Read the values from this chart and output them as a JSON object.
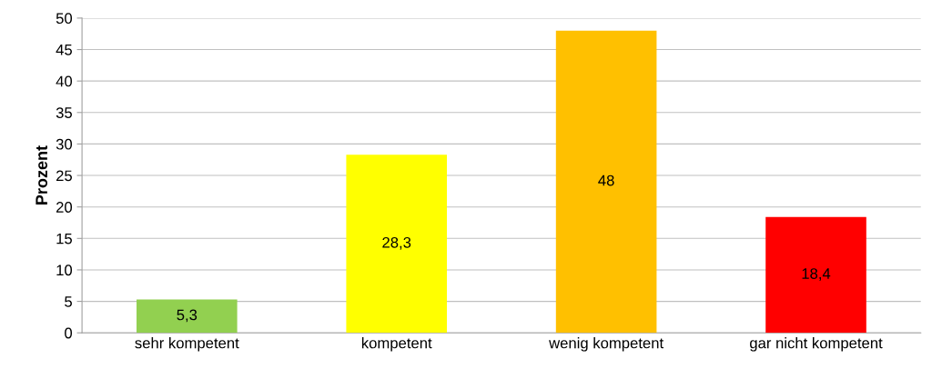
{
  "chart_data": {
    "type": "bar",
    "ylabel": "Prozent",
    "categories": [
      "sehr kompetent",
      "kompetent",
      "wenig kompetent",
      "gar nicht kompetent"
    ],
    "values": [
      5.3,
      28.3,
      48,
      18.4
    ],
    "colors": [
      "#92d050",
      "#ffff00",
      "#ffc000",
      "#ff0000"
    ],
    "value_labels": [
      "5,3",
      "28,3",
      "48",
      "18,4"
    ],
    "ylim": [
      0,
      50
    ],
    "yticks": [
      0,
      5,
      10,
      15,
      20,
      25,
      30,
      35,
      40,
      45,
      50
    ],
    "grid": "y",
    "legend": false
  }
}
